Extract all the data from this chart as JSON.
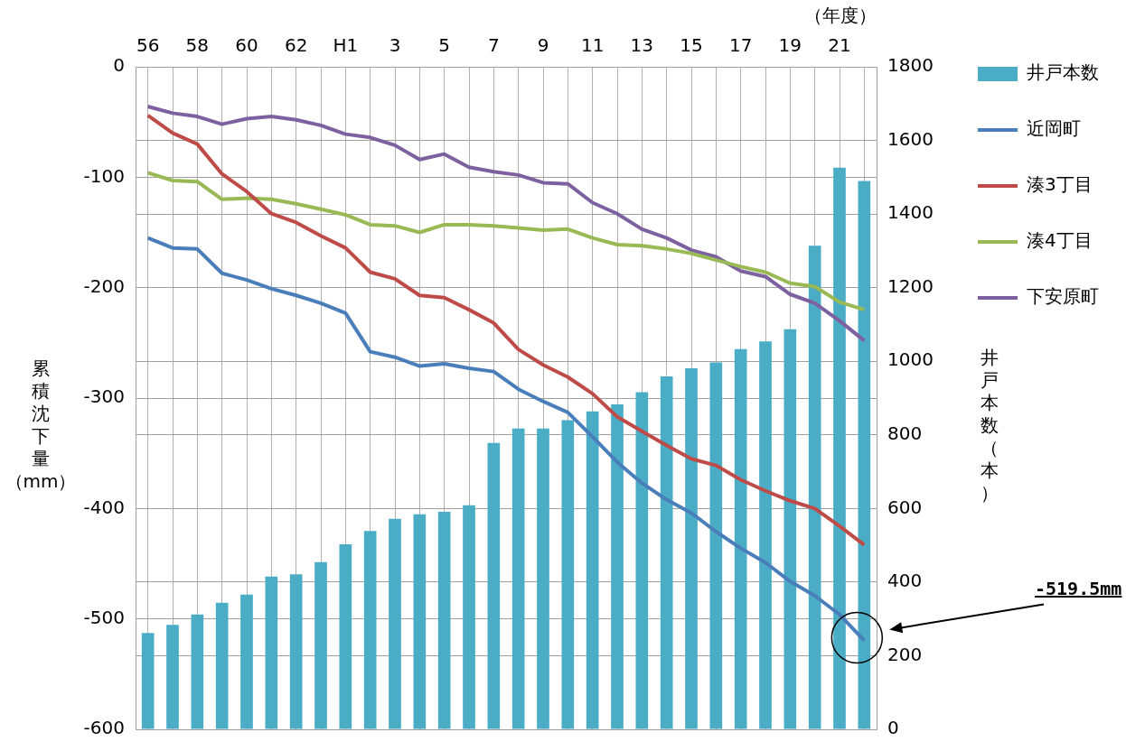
{
  "chart_data": {
    "type": "bar",
    "xlabel": "（年度）",
    "ylabel": "累積沈下量（mm）",
    "y2label": "井戸本数（本）",
    "categories": [
      "56",
      null,
      "58",
      null,
      "60",
      null,
      "62",
      null,
      "H1",
      null,
      "3",
      null,
      "5",
      null,
      "7",
      null,
      "9",
      null,
      "11",
      null,
      "13",
      null,
      "15",
      null,
      "17",
      null,
      "19",
      null,
      "21",
      null
    ],
    "series": [
      {
        "name": "井戸本数",
        "axis": "y2",
        "color": "#4bacc6",
        "values": [
          262,
          284,
          312,
          344,
          366,
          415,
          421,
          454,
          503,
          539,
          572,
          584,
          591,
          609,
          778,
          817,
          817,
          840,
          864,
          883,
          916,
          959,
          981,
          997,
          1033,
          1054,
          1087,
          1314,
          1526,
          1490
        ]
      },
      {
        "name": "近岡町",
        "type": "line",
        "color": "#4a7ebb",
        "values": [
          -155,
          -164,
          -165,
          -187,
          -193,
          -201,
          -207,
          -214,
          -223,
          -258,
          -263,
          -271,
          -269,
          -273,
          -276,
          -292,
          -303,
          -313,
          -335,
          -358,
          -377,
          -392,
          -404,
          -421,
          -436,
          -449,
          -466,
          -479,
          -496,
          -519.5
        ]
      },
      {
        "name": "湊3丁目",
        "type": "line",
        "color": "#be4b48",
        "values": [
          -44,
          -60,
          -70,
          -97,
          -113,
          -133,
          -141,
          -153,
          -164,
          -186,
          -192,
          -207,
          -209,
          -220,
          -232,
          -256,
          -270,
          -281,
          -296,
          -317,
          -330,
          -343,
          -355,
          -361,
          -374,
          -384,
          -393,
          -400,
          -416,
          -433
        ]
      },
      {
        "name": "湊4丁目",
        "type": "line",
        "color": "#98b954",
        "values": [
          -96,
          -103,
          -104,
          -120,
          -119,
          -120,
          -124,
          -129,
          -134,
          -143,
          -144,
          -150,
          -143,
          -143,
          -144,
          -146,
          -148,
          -147,
          -155,
          -161,
          -162,
          -165,
          -169,
          -175,
          -181,
          -186,
          -196,
          -199,
          -213,
          -220
        ]
      },
      {
        "name": "下安原町",
        "type": "line",
        "color": "#7d60a0",
        "values": [
          -36,
          -42,
          -45,
          -52,
          -47,
          -45,
          -48,
          -53,
          -61,
          -64,
          -71,
          -84,
          -79,
          -91,
          -95,
          -98,
          -105,
          -106,
          -123,
          -133,
          -147,
          -155,
          -166,
          -172,
          -185,
          -190,
          -206,
          -214,
          -230,
          -248
        ]
      }
    ],
    "ylim": [
      -600,
      0
    ],
    "yticks": [
      -600,
      -500,
      -400,
      -300,
      -200,
      -100,
      0
    ],
    "y2lim": [
      0,
      1800
    ],
    "y2ticks": [
      0,
      200,
      400,
      600,
      800,
      1000,
      1200,
      1400,
      1600,
      1800
    ],
    "grid": true,
    "legend": "right",
    "marker": "none",
    "line_style": "solid",
    "annotations": [
      "-519.5mm"
    ]
  }
}
